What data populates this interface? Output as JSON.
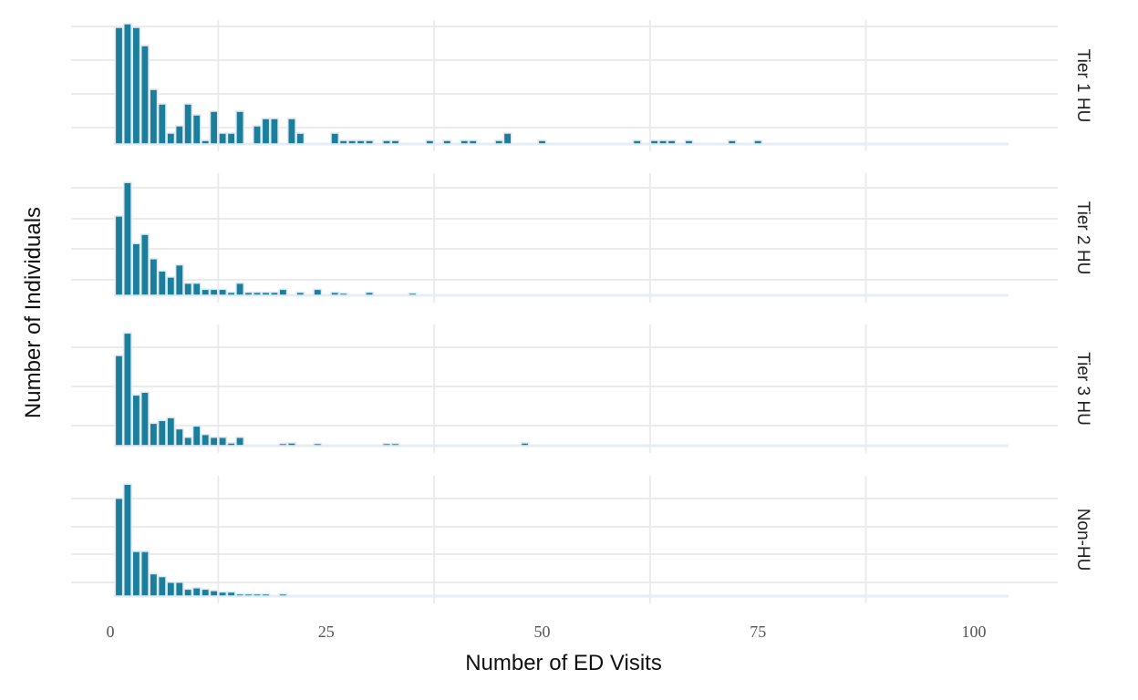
{
  "chart_data": {
    "type": "bar",
    "xlabel": "Number of ED Visits",
    "ylabel": "Number of Individuals",
    "x_ticks": [
      "0",
      "25",
      "50",
      "75",
      "100"
    ],
    "xlim": [
      -1,
      104
    ],
    "grid": true,
    "legend": "none",
    "bar_color": "#1b7f9c",
    "bar_outline": "#dfe9f2",
    "panels": [
      {
        "label": "Tier 1 HU",
        "ymax": 34,
        "x": [
          1,
          2,
          3,
          4,
          5,
          6,
          7,
          8,
          9,
          10,
          11,
          12,
          13,
          14,
          15,
          17,
          18,
          19,
          21,
          22,
          26,
          27,
          28,
          29,
          30,
          32,
          33,
          37,
          39,
          41,
          42,
          45,
          46,
          50,
          61,
          63,
          64,
          65,
          67,
          72,
          75
        ],
        "values": [
          32,
          33,
          32,
          27,
          15,
          11,
          3,
          5,
          11,
          8,
          1,
          9,
          3,
          3,
          9,
          5,
          7,
          7,
          7,
          3,
          3,
          1,
          1,
          1,
          1,
          1,
          1,
          1,
          1,
          1,
          1,
          1,
          3,
          1,
          1,
          1,
          1,
          1,
          1,
          1,
          1
        ]
      },
      {
        "label": "Tier 2 HU",
        "ymax": 40,
        "x": [
          1,
          2,
          3,
          4,
          5,
          6,
          7,
          8,
          9,
          10,
          11,
          12,
          13,
          14,
          15,
          16,
          17,
          18,
          19,
          20,
          22,
          24,
          26,
          27,
          30,
          35
        ],
        "values": [
          26,
          37,
          17,
          20,
          12,
          8,
          6,
          10,
          4,
          4,
          2,
          2,
          2,
          1,
          4,
          1,
          1,
          1,
          1,
          2,
          1,
          2,
          1,
          0.5,
          1,
          0.5
        ]
      },
      {
        "label": "Tier 3 HU",
        "ymax": 43,
        "x": [
          1,
          2,
          3,
          4,
          5,
          6,
          7,
          8,
          9,
          10,
          11,
          12,
          13,
          14,
          15,
          20,
          21,
          24,
          32,
          33,
          48
        ],
        "values": [
          32,
          40,
          18,
          19,
          8,
          9,
          10,
          6,
          3,
          7,
          4,
          3,
          3,
          1,
          3,
          0.5,
          1,
          0.5,
          0.5,
          0.5,
          1
        ]
      },
      {
        "label": "Non-HU",
        "ymax": 43,
        "x": [
          1,
          2,
          3,
          4,
          5,
          6,
          7,
          8,
          9,
          10,
          11,
          12,
          13,
          14,
          15,
          16,
          17,
          18,
          20
        ],
        "values": [
          35,
          40,
          16,
          16,
          8,
          7,
          5,
          5,
          2.5,
          3,
          2.5,
          2,
          1.5,
          1.5,
          0.5,
          0.5,
          0.5,
          0.5,
          0.5
        ]
      }
    ]
  }
}
